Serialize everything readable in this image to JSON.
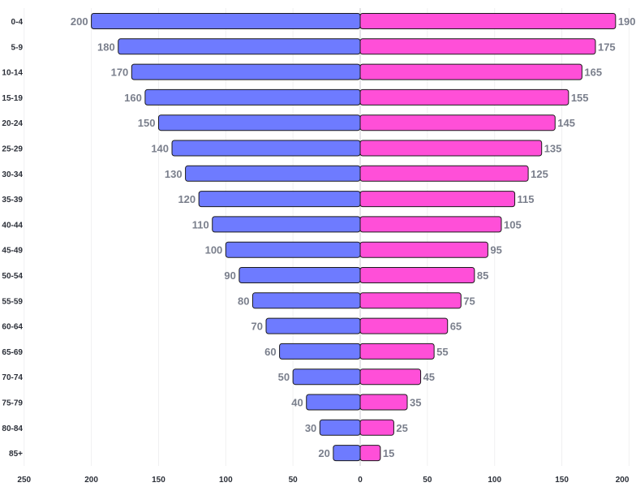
{
  "chart_data": {
    "type": "bar",
    "orientation": "horizontal",
    "layout": "population-pyramid",
    "categories": [
      "0-4",
      "5-9",
      "10-14",
      "15-19",
      "20-24",
      "25-29",
      "30-34",
      "35-39",
      "40-44",
      "45-49",
      "50-54",
      "55-59",
      "60-64",
      "65-69",
      "70-74",
      "75-79",
      "80-84",
      "85+"
    ],
    "series": [
      {
        "side": "left",
        "color": "#6e7bff",
        "values": [
          200,
          180,
          170,
          160,
          150,
          140,
          130,
          120,
          110,
          100,
          90,
          80,
          70,
          60,
          50,
          40,
          30,
          20
        ]
      },
      {
        "side": "right",
        "color": "#ff4fd8",
        "values": [
          190,
          175,
          165,
          155,
          145,
          135,
          125,
          115,
          105,
          95,
          85,
          75,
          65,
          55,
          45,
          35,
          25,
          15
        ]
      }
    ],
    "x_ticks": [
      "250",
      "200",
      "150",
      "100",
      "50",
      "0",
      "50",
      "100",
      "150",
      "200"
    ],
    "xlim": [
      -250,
      200
    ],
    "grid": true,
    "legend": "none",
    "title": "",
    "xlabel": "",
    "ylabel": ""
  }
}
